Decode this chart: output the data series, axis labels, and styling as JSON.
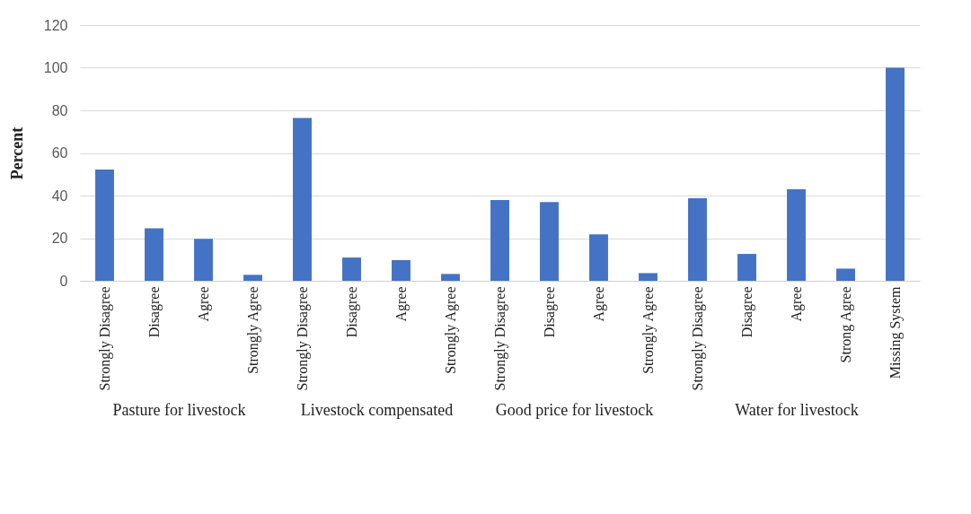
{
  "chart_data": [
    {
      "type": "bar",
      "xlabel": "Pasture for livestock",
      "ylabel": "Percent",
      "categories": [
        "Strongly Disagree",
        "Disagree",
        "Agree",
        "Strongly Agree"
      ],
      "values": [
        52.2,
        24.6,
        19.7,
        2.8
      ],
      "color": "#4472c4",
      "ylim": [
        0,
        120
      ],
      "yticks": [
        0,
        20,
        40,
        60,
        80,
        100,
        120
      ],
      "grid": "y"
    },
    {
      "type": "bar",
      "xlabel": "Livestock compensated",
      "categories": [
        "Strongly Disagree",
        "Disagree",
        "Agree",
        "Strongly Agree"
      ],
      "values": [
        76.4,
        10.9,
        9.7,
        3.2
      ],
      "color": "#4472c4",
      "ylim": [
        0,
        120
      ],
      "yticks": [
        0,
        20,
        40,
        60,
        80,
        100,
        120
      ],
      "grid": "y",
      "tick_labels": "x"
    },
    {
      "type": "bar",
      "xlabel": "Good price for livestock",
      "categories": [
        "Strongly Disagree",
        "Disagree",
        "Agree",
        "Strongly Agree"
      ],
      "values": [
        37.9,
        36.9,
        21.8,
        3.6
      ],
      "color": "#4472c4",
      "ylim": [
        0,
        120
      ],
      "yticks": [
        0,
        20,
        40,
        60,
        80,
        100,
        120
      ],
      "grid": "y",
      "tick_labels": "x"
    },
    {
      "type": "bar",
      "xlabel": "Water for livestock",
      "categories": [
        "Strongly Disagree",
        "Disagree",
        "Agree",
        "Strong Agree",
        "Missing System"
      ],
      "values": [
        38.7,
        12.6,
        42.9,
        5.7,
        100
      ],
      "color": "#4472c4",
      "ylim": [
        0,
        120
      ],
      "yticks": [
        0,
        20,
        40,
        60,
        80,
        100,
        120
      ],
      "grid": "y",
      "tick_labels": "x"
    }
  ]
}
